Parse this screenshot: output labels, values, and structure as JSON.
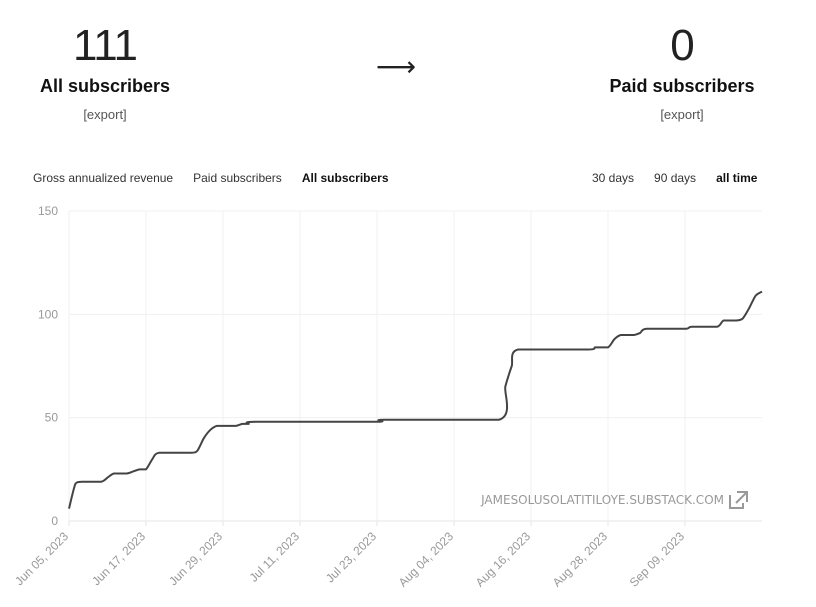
{
  "stats": {
    "left": {
      "value": "111",
      "label": "All subscribers",
      "export_label": "[export]"
    },
    "arrow": "⟶",
    "right": {
      "value": "0",
      "label": "Paid subscribers",
      "export_label": "[export]"
    }
  },
  "metric_tabs": [
    {
      "label": "Gross annualized revenue",
      "active": false
    },
    {
      "label": "Paid subscribers",
      "active": false
    },
    {
      "label": "All subscribers",
      "active": true
    }
  ],
  "range_tabs": [
    {
      "label": "30 days",
      "active": false
    },
    {
      "label": "90 days",
      "active": false
    },
    {
      "label": "all time",
      "active": true
    }
  ],
  "watermark": "JAMESOLUSOLATITILOYE.SUBSTACK.COM",
  "colors": {
    "line": "#444444",
    "grid": "#f0f0f0",
    "axis_text": "#999999"
  },
  "icons": {
    "external_link": "external-link-icon"
  },
  "chart_data": {
    "type": "line",
    "title": "",
    "xlabel": "",
    "ylabel": "",
    "ylim": [
      0,
      150
    ],
    "yticks": [
      0,
      50,
      100,
      150
    ],
    "x_ticks": [
      "Jun 05, 2023",
      "Jun 17, 2023",
      "Jun 29, 2023",
      "Jul 11, 2023",
      "Jul 23, 2023",
      "Aug 04, 2023",
      "Aug 16, 2023",
      "Aug 28, 2023",
      "Sep 09, 2023"
    ],
    "grid": true,
    "x": [
      "2023-06-05",
      "2023-06-06",
      "2023-06-07",
      "2023-06-10",
      "2023-06-11",
      "2023-06-12",
      "2023-06-14",
      "2023-06-15",
      "2023-06-16",
      "2023-06-17",
      "2023-06-18",
      "2023-06-19",
      "2023-06-24",
      "2023-06-25",
      "2023-06-26",
      "2023-06-27",
      "2023-06-28",
      "2023-06-29",
      "2023-07-01",
      "2023-07-02",
      "2023-07-03",
      "2023-07-04",
      "2023-07-23",
      "2023-07-24",
      "2023-08-11",
      "2023-08-12",
      "2023-08-13",
      "2023-08-14",
      "2023-08-25",
      "2023-08-26",
      "2023-08-28",
      "2023-08-29",
      "2023-08-30",
      "2023-09-01",
      "2023-09-02",
      "2023-09-03",
      "2023-09-09",
      "2023-09-10",
      "2023-09-14",
      "2023-09-15",
      "2023-09-17",
      "2023-09-18",
      "2023-09-19",
      "2023-09-20",
      "2023-09-21"
    ],
    "series": [
      {
        "values": [
          6,
          18,
          19,
          19,
          21,
          23,
          23,
          24,
          25,
          25,
          30,
          33,
          33,
          34,
          40,
          44,
          46,
          46,
          46,
          47,
          47,
          48,
          48,
          49,
          49,
          65,
          75,
          83,
          83,
          84,
          84,
          88,
          90,
          90,
          91,
          93,
          93,
          94,
          94,
          97,
          97,
          98,
          103,
          109,
          111
        ]
      }
    ]
  }
}
